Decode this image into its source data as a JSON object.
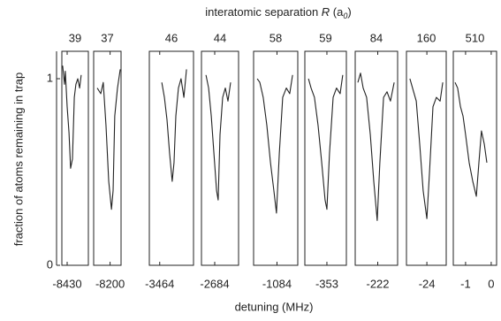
{
  "chart_data": {
    "type": "line",
    "title": [
      "interatomic separation ",
      "R",
      " (a",
      "0",
      ")"
    ],
    "y_label": "fraction of atoms remaining in trap",
    "x_label": "detuning (MHz)",
    "ylim": [
      0,
      1.147
    ],
    "yticks": [
      0,
      1
    ],
    "color": "#222222",
    "panels": [
      {
        "label": "39",
        "xlim": [
          -8430.2,
          -8429.2
        ],
        "xticks": [
          -8430
        ],
        "x": [
          -8430.17,
          -8430.1,
          -8430.07,
          -8430.0,
          -8429.93,
          -8429.87,
          -8429.8,
          -8429.73,
          -8429.67,
          -8429.6,
          -8429.53,
          -8429.47
        ],
        "values": [
          1.07,
          0.97,
          1.04,
          0.85,
          0.71,
          0.52,
          0.57,
          0.9,
          0.97,
          1.0,
          0.95,
          1.02
        ]
      },
      {
        "label": "37",
        "xlim": [
          -8200.6,
          -8199.6
        ],
        "xticks": [
          -8200
        ],
        "x": [
          -8200.47,
          -8200.34,
          -8200.25,
          -8200.15,
          -8200.05,
          -8199.95,
          -8199.89,
          -8199.83,
          -8199.73,
          -8199.63
        ],
        "values": [
          0.95,
          0.92,
          0.98,
          0.75,
          0.45,
          0.3,
          0.4,
          0.8,
          0.95,
          1.05
        ]
      },
      {
        "label": "46",
        "xlim": [
          -3464.4,
          -3462.7
        ],
        "xticks": [
          -3464
        ],
        "x": [
          -3463.92,
          -3463.82,
          -3463.72,
          -3463.62,
          -3463.52,
          -3463.45,
          -3463.38,
          -3463.28,
          -3463.18,
          -3463.07,
          -3462.97
        ],
        "values": [
          0.98,
          0.9,
          0.78,
          0.6,
          0.45,
          0.55,
          0.8,
          0.95,
          1.0,
          0.9,
          1.05
        ]
      },
      {
        "label": "44",
        "xlim": [
          -2684.5,
          -2683.1
        ],
        "xticks": [
          -2684
        ],
        "x": [
          -2684.33,
          -2684.23,
          -2684.13,
          -2684.03,
          -2683.93,
          -2683.87,
          -2683.8,
          -2683.7,
          -2683.6,
          -2683.5,
          -2683.4
        ],
        "values": [
          1.02,
          0.95,
          0.8,
          0.6,
          0.4,
          0.35,
          0.7,
          0.9,
          0.95,
          0.88,
          0.98
        ]
      },
      {
        "label": "58",
        "xlim": [
          -1084.9,
          -1083.2
        ],
        "xticks": [
          -1084
        ],
        "x": [
          -1084.76,
          -1084.66,
          -1084.53,
          -1084.39,
          -1084.25,
          -1084.12,
          -1084.02,
          -1083.91,
          -1083.78,
          -1083.64,
          -1083.51,
          -1083.4
        ],
        "values": [
          1.0,
          0.98,
          0.9,
          0.75,
          0.55,
          0.4,
          0.28,
          0.6,
          0.9,
          0.95,
          0.92,
          1.02
        ]
      },
      {
        "label": "59",
        "xlim": [
          -353.85,
          -352.25
        ],
        "xticks": [
          -353
        ],
        "x": [
          -353.71,
          -353.61,
          -353.48,
          -353.34,
          -353.2,
          -353.07,
          -353.0,
          -352.9,
          -352.76,
          -352.63,
          -352.49,
          -352.39
        ],
        "values": [
          1.0,
          0.95,
          0.9,
          0.75,
          0.55,
          0.35,
          0.3,
          0.6,
          0.9,
          0.95,
          0.92,
          1.02
        ]
      },
      {
        "label": "84",
        "xlim": [
          -222.85,
          -221.25
        ],
        "xticks": [
          -222
        ],
        "x": [
          -222.75,
          -222.65,
          -222.55,
          -222.42,
          -222.28,
          -222.15,
          -222.02,
          -221.92,
          -221.78,
          -221.65,
          -221.52,
          -221.38
        ],
        "values": [
          0.98,
          1.03,
          0.95,
          0.9,
          0.7,
          0.45,
          0.24,
          0.55,
          0.9,
          0.93,
          0.88,
          0.98
        ]
      },
      {
        "label": "160",
        "xlim": [
          -24.77,
          -23.27
        ],
        "xticks": [
          -24
        ],
        "x": [
          -24.64,
          -24.54,
          -24.4,
          -24.27,
          -24.14,
          -24.0,
          -23.9,
          -23.77,
          -23.64,
          -23.5,
          -23.4
        ],
        "values": [
          1.0,
          0.95,
          0.88,
          0.65,
          0.4,
          0.25,
          0.5,
          0.85,
          0.9,
          0.88,
          0.98
        ]
      },
      {
        "label": "510",
        "xlim": [
          -1.48,
          0.21
        ],
        "xticks": [
          -1,
          0
        ],
        "x": [
          -1.41,
          -1.31,
          -1.2,
          -1.1,
          -1.0,
          -0.86,
          -0.72,
          -0.58,
          -0.48,
          -0.38,
          -0.27,
          -0.17
        ],
        "values": [
          0.98,
          0.95,
          0.85,
          0.8,
          0.7,
          0.55,
          0.45,
          0.37,
          0.55,
          0.72,
          0.65,
          0.55
        ]
      }
    ]
  }
}
